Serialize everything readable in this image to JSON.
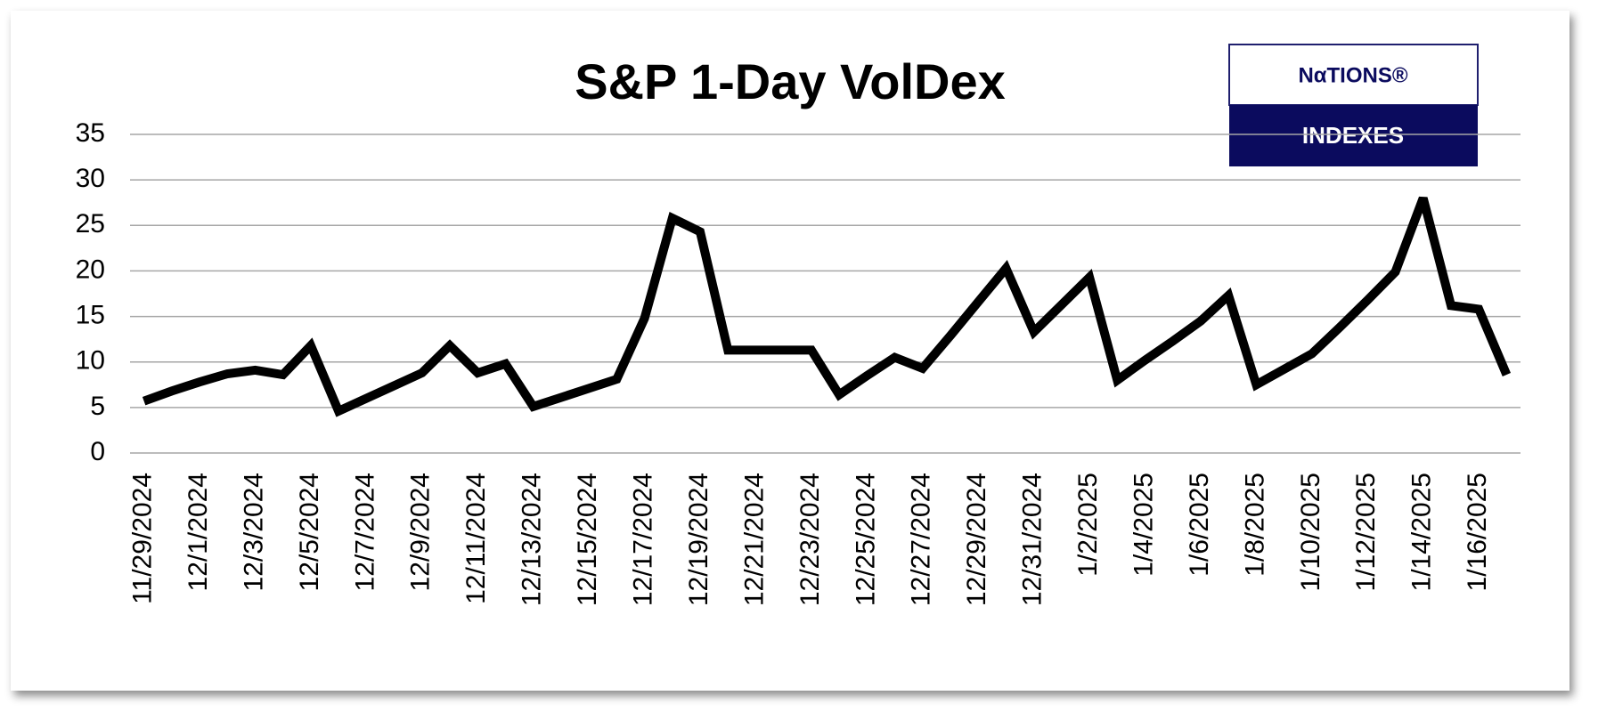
{
  "chart_data": {
    "type": "line",
    "title": "S&P 1-Day VolDex",
    "logo": {
      "top": "NαTIONS®",
      "bottom": "INDEXES"
    },
    "categories": [
      "11/29/2024",
      null,
      "12/1/2024",
      null,
      "12/3/2024",
      null,
      "12/5/2024",
      null,
      "12/7/2024",
      null,
      "12/9/2024",
      null,
      "12/11/2024",
      null,
      "12/13/2024",
      null,
      "12/15/2024",
      null,
      "12/17/2024",
      null,
      "12/19/2024",
      null,
      "12/21/2024",
      null,
      "12/23/2024",
      null,
      "12/25/2024",
      null,
      "12/27/2024",
      null,
      "12/29/2024",
      null,
      "12/31/2024",
      null,
      "1/2/2025",
      null,
      "1/4/2025",
      null,
      "1/6/2025",
      null,
      "1/8/2025",
      null,
      "1/10/2025",
      null,
      "1/12/2025",
      null,
      "1/14/2025",
      null,
      "1/16/2025",
      null
    ],
    "values": [
      5.7,
      6.8,
      7.8,
      8.7,
      9.1,
      8.6,
      11.8,
      4.6,
      6.0,
      7.4,
      8.8,
      11.8,
      8.8,
      9.8,
      5.1,
      6.1,
      7.1,
      8.1,
      14.8,
      25.8,
      24.3,
      11.3,
      11.3,
      11.3,
      11.3,
      6.4,
      8.5,
      10.5,
      9.3,
      12.9,
      16.6,
      20.3,
      13.3,
      16.3,
      19.3,
      8.0,
      10.2,
      12.3,
      14.5,
      17.3,
      7.5,
      9.2,
      10.9,
      13.8,
      16.8,
      19.9,
      28.0,
      16.2,
      15.8,
      8.6
    ],
    "color": "#000000",
    "ylim": [
      0,
      35
    ],
    "yticks": [
      0,
      5,
      10,
      15,
      20,
      25,
      30,
      35
    ],
    "grid": true
  }
}
